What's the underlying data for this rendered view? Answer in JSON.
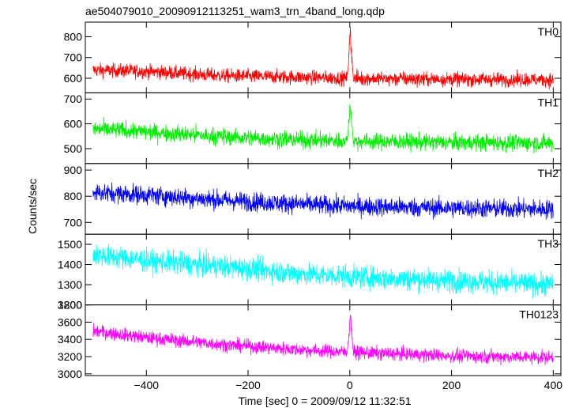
{
  "chart_data": {
    "type": "line",
    "title": "ae504079010_20090912113251_wam3_trn_4band_long.qdp",
    "xlabel": "Time [sec] 0 = 2009/09/12 11:32:51",
    "ylabel": "Counts/sec",
    "xlim": [
      -520,
      415
    ],
    "x_ticks": [
      -400,
      -200,
      0,
      200,
      400
    ],
    "x_tick_labels": [
      "−400",
      "−200",
      "0",
      "200",
      "400"
    ],
    "data_range": [
      -505,
      400
    ],
    "grid": false,
    "panels": [
      {
        "name": "TH0",
        "color": "#ff0000",
        "ylim": [
          530,
          870
        ],
        "y_ticks": [
          600,
          700,
          800
        ],
        "trend": [
          [
            -505,
            640
          ],
          [
            -400,
            633
          ],
          [
            -250,
            612
          ],
          [
            -100,
            605
          ],
          [
            0,
            600
          ],
          [
            200,
            595
          ],
          [
            400,
            593
          ]
        ],
        "noise": 24,
        "flare": {
          "peak": 860,
          "width": 6
        }
      },
      {
        "name": "TH1",
        "color": "#00ee00",
        "ylim": [
          440,
          725
        ],
        "y_ticks": [
          500,
          600,
          700
        ],
        "trend": [
          [
            -505,
            580
          ],
          [
            -400,
            568
          ],
          [
            -250,
            548
          ],
          [
            -100,
            535
          ],
          [
            0,
            530
          ],
          [
            200,
            525
          ],
          [
            400,
            522
          ]
        ],
        "noise": 24,
        "flare": {
          "peak": 720,
          "width": 6
        }
      },
      {
        "name": "TH2",
        "color": "#0000ff",
        "ylim": [
          655,
          925
        ],
        "y_ticks": [
          700,
          800,
          900
        ],
        "trend": [
          [
            -505,
            815
          ],
          [
            -400,
            805
          ],
          [
            -250,
            785
          ],
          [
            -100,
            770
          ],
          [
            0,
            762
          ],
          [
            200,
            755
          ],
          [
            400,
            750
          ]
        ],
        "noise": 26,
        "flare": null
      },
      {
        "name": "TH3",
        "color": "#00ffff",
        "ylim": [
          1200,
          1550
        ],
        "y_ticks": [
          1200,
          1300,
          1400,
          1500
        ],
        "trend": [
          [
            -505,
            1450
          ],
          [
            -400,
            1420
          ],
          [
            -250,
            1390
          ],
          [
            -100,
            1355
          ],
          [
            0,
            1340
          ],
          [
            200,
            1320
          ],
          [
            400,
            1300
          ]
        ],
        "noise": 40,
        "flare": null
      },
      {
        "name": "TH0123",
        "color": "#ff00ff",
        "ylim": [
          2980,
          3800
        ],
        "y_ticks": [
          3000,
          3200,
          3400,
          3600,
          3800
        ],
        "trend": [
          [
            -505,
            3500
          ],
          [
            -400,
            3420
          ],
          [
            -250,
            3340
          ],
          [
            -100,
            3280
          ],
          [
            0,
            3250
          ],
          [
            200,
            3210
          ],
          [
            400,
            3190
          ]
        ],
        "noise": 55,
        "flare": {
          "peak": 3790,
          "width": 6
        }
      }
    ]
  }
}
